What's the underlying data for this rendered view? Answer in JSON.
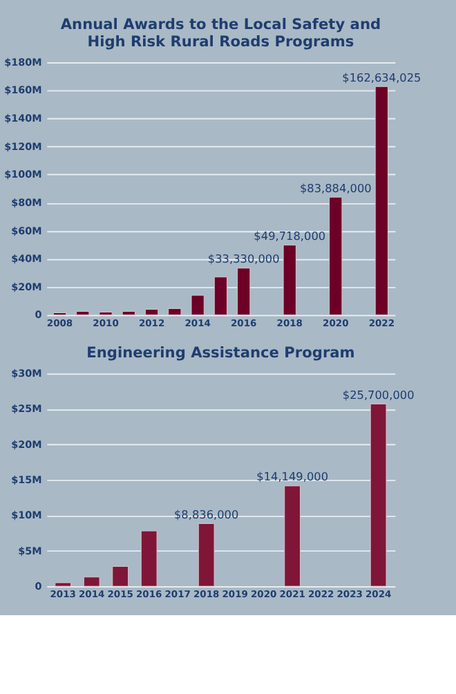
{
  "chart_data": [
    {
      "type": "bar",
      "title": "Annual Awards to the Local Safety and\nHigh Risk Rural Roads Programs",
      "categories": [
        "2008",
        null,
        "2010",
        null,
        "2012",
        null,
        "2014",
        null,
        "2016",
        null,
        "2018",
        null,
        "2020",
        null,
        "2022"
      ],
      "series": [
        {
          "color": "#6d0026",
          "values": [
            1.5,
            2.5,
            2,
            2.5,
            4,
            4.5,
            14,
            27,
            33.33,
            null,
            49.718,
            null,
            83.884,
            null,
            162.634025
          ]
        }
      ],
      "value_labels": [
        null,
        null,
        null,
        null,
        null,
        null,
        null,
        null,
        "$33,330,000",
        null,
        "$49,718,000",
        null,
        "$83,884,000",
        null,
        "$162,634,025"
      ],
      "ylim": [
        0,
        180
      ],
      "yticks": [
        {
          "value": 0,
          "label": "0"
        },
        {
          "value": 20,
          "label": "$20M"
        },
        {
          "value": 40,
          "label": "$40M"
        },
        {
          "value": 60,
          "label": "$60M"
        },
        {
          "value": 80,
          "label": "$80M"
        },
        {
          "value": 100,
          "label": "$100M"
        },
        {
          "value": 120,
          "label": "$120M"
        },
        {
          "value": 140,
          "label": "$140M"
        },
        {
          "value": 160,
          "label": "$160M"
        },
        {
          "value": 180,
          "label": "$180M"
        }
      ],
      "grid": "y",
      "legend": false
    },
    {
      "type": "bar",
      "title": "Engineering Assistance Program",
      "categories": [
        "2013",
        "2014",
        "2015",
        "2016",
        "2017",
        "2018",
        "2019",
        "2020",
        "2021",
        "2022",
        "2023",
        "2024"
      ],
      "series": [
        {
          "color": "#7f1638",
          "values": [
            0.5,
            1.3,
            2.8,
            7.8,
            null,
            8.836,
            null,
            null,
            14.149,
            null,
            null,
            25.7
          ]
        }
      ],
      "value_labels": [
        null,
        null,
        null,
        null,
        null,
        "$8,836,000",
        null,
        null,
        "$14,149,000",
        null,
        null,
        "$25,700,000"
      ],
      "ylim": [
        0,
        30
      ],
      "yticks": [
        {
          "value": 0,
          "label": "0"
        },
        {
          "value": 5,
          "label": "$5M"
        },
        {
          "value": 10,
          "label": "$10M"
        },
        {
          "value": 15,
          "label": "$15M"
        },
        {
          "value": 20,
          "label": "$20M"
        },
        {
          "value": 25,
          "label": "$25M"
        },
        {
          "value": 30,
          "label": "$30M"
        }
      ],
      "grid": "y",
      "legend": false
    }
  ]
}
